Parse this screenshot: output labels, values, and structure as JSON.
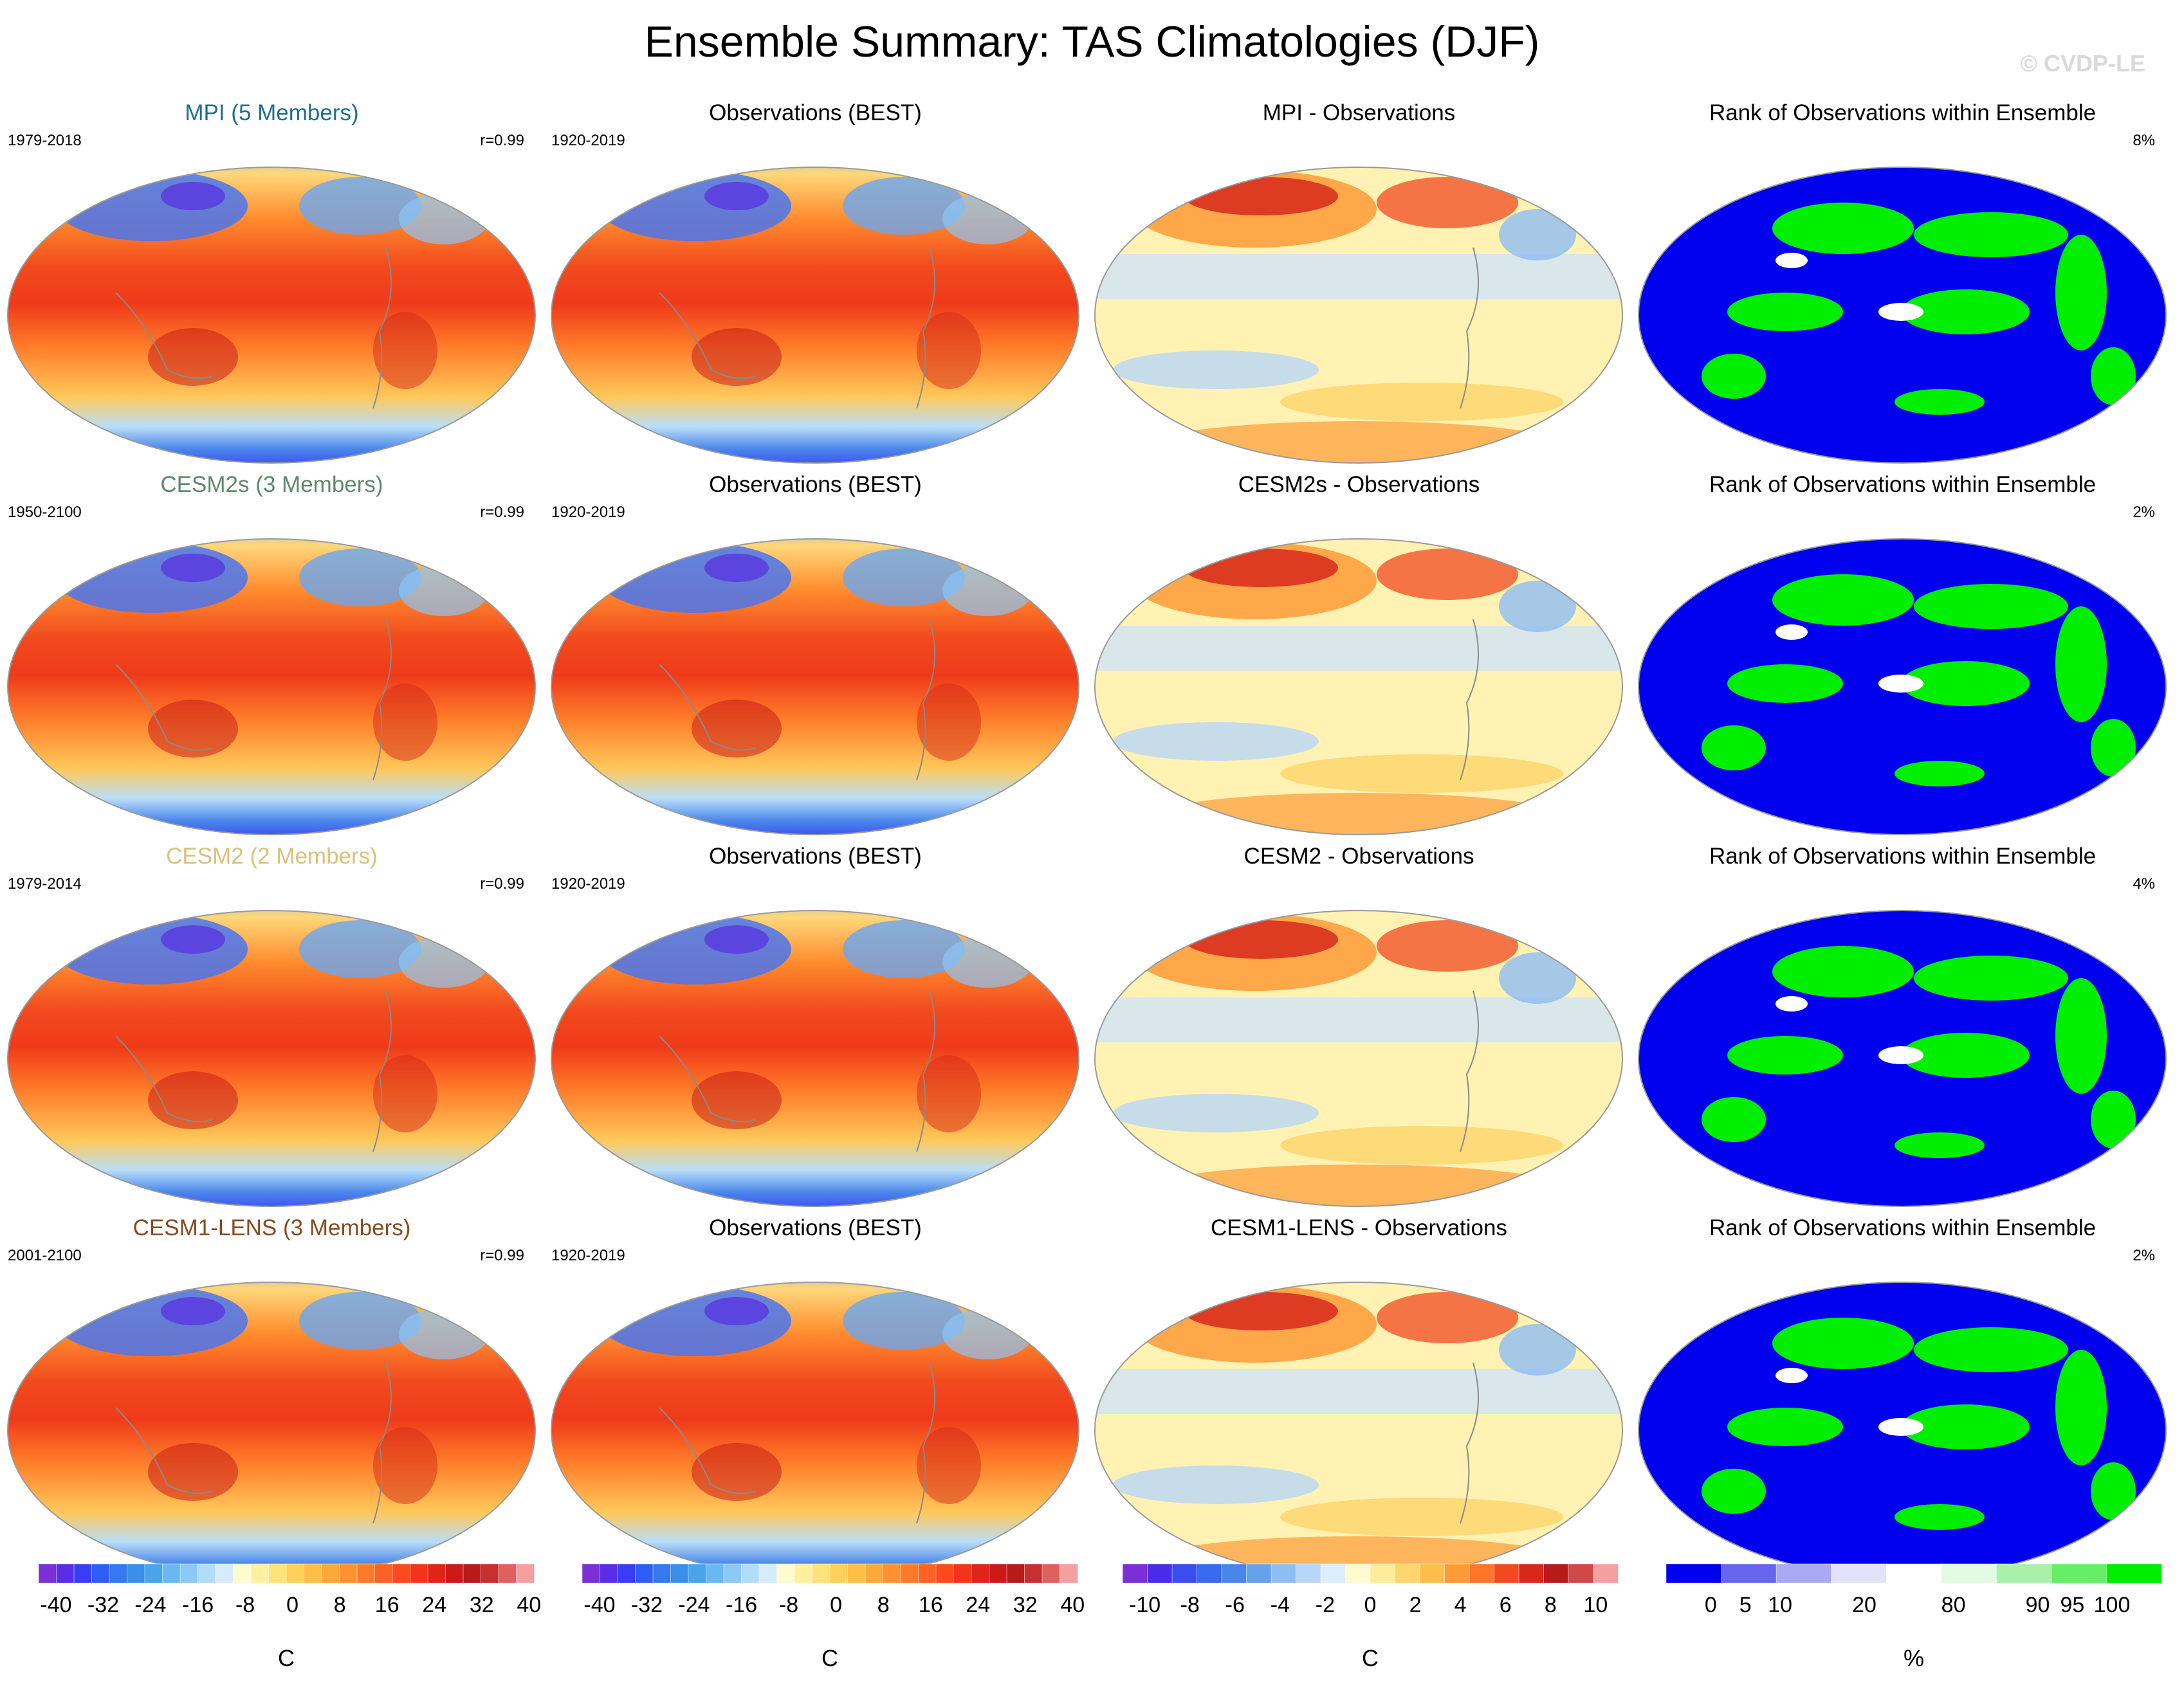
{
  "title": "Ensemble Summary: TAS Climatologies (DJF)",
  "watermark": "© CVDP-LE",
  "rows": [
    {
      "model": {
        "title": "MPI (5 Members)",
        "title_color": "#1f6f8b",
        "period": "1979-2018",
        "corr": "r=0.99"
      },
      "obs": {
        "title": "Observations (BEST)",
        "period": "1920-2019"
      },
      "diff": {
        "title": "MPI - Observations"
      },
      "rank": {
        "title": "Rank of Observations within Ensemble",
        "pct": "8%"
      }
    },
    {
      "model": {
        "title": "CESM2s (3 Members)",
        "title_color": "#5e8a6b",
        "period": "1950-2100",
        "corr": "r=0.99"
      },
      "obs": {
        "title": "Observations (BEST)",
        "period": "1920-2019"
      },
      "diff": {
        "title": "CESM2s - Observations"
      },
      "rank": {
        "title": "Rank of Observations within Ensemble",
        "pct": "2%"
      }
    },
    {
      "model": {
        "title": "CESM2 (2 Members)",
        "title_color": "#d9c27a",
        "period": "1979-2014",
        "corr": "r=0.99"
      },
      "obs": {
        "title": "Observations (BEST)",
        "period": "1920-2019"
      },
      "diff": {
        "title": "CESM2 - Observations"
      },
      "rank": {
        "title": "Rank of Observations within Ensemble",
        "pct": "4%"
      }
    },
    {
      "model": {
        "title": "CESM1-LENS (3 Members)",
        "title_color": "#8a4a1e",
        "period": "2001-2100",
        "corr": "r=0.99"
      },
      "obs": {
        "title": "Observations (BEST)",
        "period": "1920-2019"
      },
      "diff": {
        "title": "CESM1-LENS - Observations"
      },
      "rank": {
        "title": "Rank of Observations within Ensemble",
        "pct": "2%"
      }
    }
  ],
  "colorbars": {
    "temperature": {
      "labels": [
        "-40",
        "-32",
        "-24",
        "-16",
        "-8",
        "0",
        "8",
        "16",
        "24",
        "32",
        "40"
      ],
      "unit": "C",
      "colors": [
        "#7b2fd6",
        "#5a2ee6",
        "#3a3ef2",
        "#2f5cf5",
        "#3478f2",
        "#3a8fe8",
        "#49a4ea",
        "#68b9f0",
        "#8ccaf5",
        "#b2dcf8",
        "#d7ecfb",
        "#fffbd0",
        "#fff0a0",
        "#ffe27a",
        "#ffd15a",
        "#ffbe45",
        "#ffa83a",
        "#ff9130",
        "#ff7a28",
        "#ff6222",
        "#ff4a1e",
        "#f3341a",
        "#e0241a",
        "#cc1a1a",
        "#b81a1a",
        "#c83030",
        "#e06060",
        "#f5a0a0"
      ]
    },
    "difference": {
      "labels": [
        "-10",
        "-8",
        "-6",
        "-4",
        "-2",
        "0",
        "2",
        "4",
        "6",
        "8",
        "10"
      ],
      "unit": "C",
      "colors": [
        "#7b2fd6",
        "#4a2be6",
        "#3a4ef0",
        "#3a6af0",
        "#4a86ea",
        "#66a2ec",
        "#8ebdf2",
        "#b8d6f6",
        "#ddeefb",
        "#fffbd0",
        "#ffec9a",
        "#ffd66e",
        "#ffbd4c",
        "#ff9b36",
        "#ff762a",
        "#f24a20",
        "#d8281c",
        "#b81a1a",
        "#d04848",
        "#f5a0a0"
      ]
    },
    "rank": {
      "labels": [
        "0",
        "5",
        "10",
        "20",
        "80",
        "90",
        "95",
        "100"
      ],
      "unit": "%",
      "colors": [
        "#0000ee",
        "#6666ee",
        "#aaaaf2",
        "#e2e2fa",
        "#ffffff",
        "#e2fae2",
        "#aaf0aa",
        "#66ee66",
        "#00ee00"
      ]
    }
  }
}
